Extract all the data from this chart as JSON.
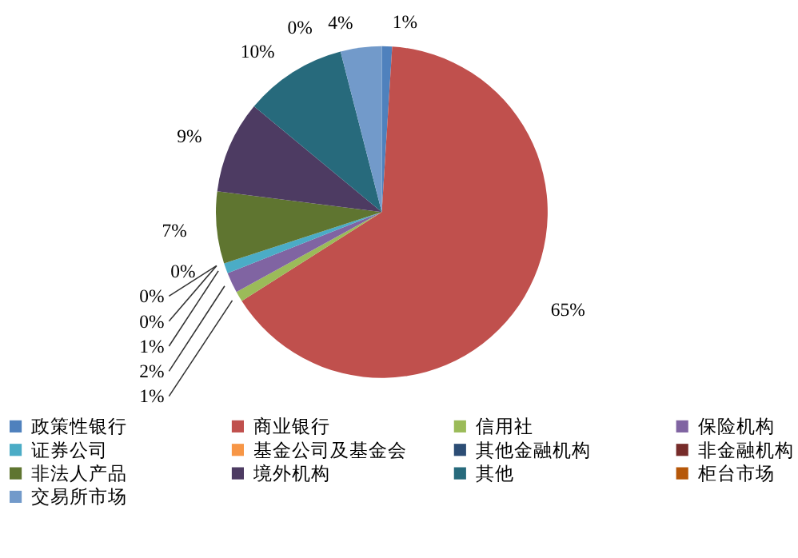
{
  "chart_data": {
    "type": "pie",
    "categories": [
      "政策性银行",
      "商业银行",
      "信用社",
      "保险机构",
      "证券公司",
      "基金公司及基金会",
      "其他金融机构",
      "非金融机构",
      "非法人产品",
      "境外机构",
      "其他",
      "柜台市场",
      "交易所市场"
    ],
    "values": [
      1,
      65,
      1,
      2,
      1,
      0,
      0,
      0,
      7,
      9,
      10,
      0,
      4
    ],
    "value_labels": [
      "1%",
      "65%",
      "1%",
      "2%",
      "1%",
      "0%",
      "0%",
      "0%",
      "7%",
      "9%",
      "10%",
      "0%",
      "4%"
    ],
    "colors": [
      "#4f81bd",
      "#c0504d",
      "#9bbb59",
      "#8064a2",
      "#4bacc6",
      "#f79646",
      "#2c4d75",
      "#772c2a",
      "#5f7530",
      "#4d3b62",
      "#276a7c",
      "#b65708",
      "#729aca"
    ],
    "legend": "bottom"
  }
}
